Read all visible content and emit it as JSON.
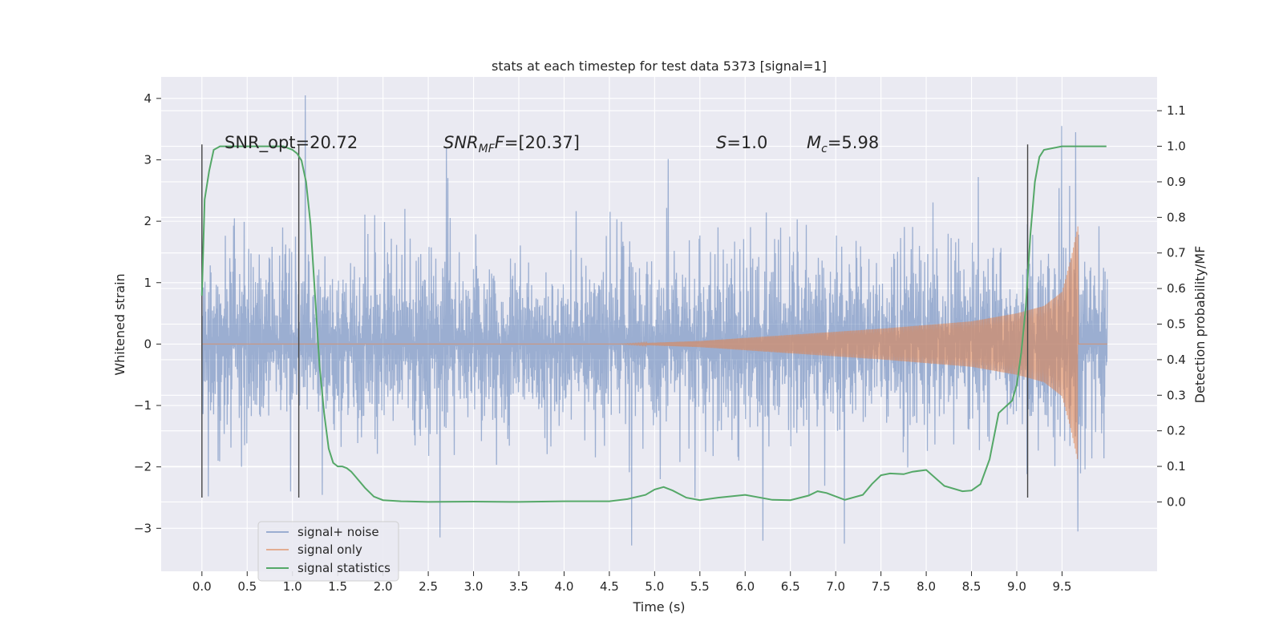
{
  "chart_data": {
    "type": "line",
    "title": "stats at each timestep for test data 5373 [signal=1]",
    "xlabel": "Time (s)",
    "ylabel_left": "Whitened strain",
    "ylabel_right": "Detection probability/MF",
    "xlim": [
      -0.45,
      10.55
    ],
    "ylim_left": [
      -3.7,
      4.35
    ],
    "ylim_right": [
      -0.195,
      1.195
    ],
    "x_ticks": [
      "0.0",
      "0.5",
      "1.0",
      "1.5",
      "2.0",
      "2.5",
      "3.0",
      "3.5",
      "4.0",
      "4.5",
      "5.0",
      "5.5",
      "6.0",
      "6.5",
      "7.0",
      "7.5",
      "8.0",
      "8.5",
      "9.0",
      "9.5"
    ],
    "y_left_ticks": [
      "4",
      "3",
      "2",
      "1",
      "0",
      "−1",
      "−2",
      "−3"
    ],
    "y_right_ticks": [
      "1.1",
      "1.0",
      "0.9",
      "0.8",
      "0.7",
      "0.6",
      "0.5",
      "0.4",
      "0.3",
      "0.2",
      "0.1",
      "0.0"
    ],
    "grid": true,
    "annotations": {
      "snr_opt": "SNR_opt=20.72",
      "snr_mf_prefix": "SNR",
      "snr_mf_sub": "MF",
      "snr_mf_suffix": "=[20.37]",
      "s_prefix": "S",
      "s_suffix": "=1.0",
      "mc_prefix": "M",
      "mc_sub": "c",
      "mc_suffix": "=5.98"
    },
    "vertical_markers_x": [
      0.0,
      1.07,
      9.12
    ],
    "legend": {
      "placement": "lower-left",
      "entries": [
        "signal+ noise",
        "signal only",
        "signal statistics"
      ]
    },
    "series": [
      {
        "name": "signal+ noise",
        "axis": "left",
        "description_values": {
          "x_range": [
            0.0,
            10.0
          ],
          "typical_envelope": [
            -1.8,
            2.0
          ],
          "peaks": [
            {
              "x": 1.14,
              "y": 4.05
            },
            {
              "x": 2.7,
              "y": 3.2
            },
            {
              "x": 9.5,
              "y": 3.55
            },
            {
              "x": 9.65,
              "y": 3.45
            },
            {
              "x": 4.75,
              "y": -3.28
            },
            {
              "x": 2.63,
              "y": -3.15
            },
            {
              "x": 6.2,
              "y": -3.2
            },
            {
              "x": 7.1,
              "y": -3.25
            },
            {
              "x": 9.68,
              "y": -3.05
            },
            {
              "x": 0.07,
              "y": -2.48
            },
            {
              "x": 0.98,
              "y": -2.4
            }
          ]
        }
      },
      {
        "name": "signal only",
        "axis": "left",
        "description_values": {
          "chirp_start_x": 4.6,
          "chirp_end_x": 9.68,
          "amplitude_points": [
            [
              4.6,
              0.0
            ],
            [
              5.5,
              0.05
            ],
            [
              6.5,
              0.15
            ],
            [
              7.5,
              0.25
            ],
            [
              8.5,
              0.37
            ],
            [
              9.0,
              0.5
            ],
            [
              9.3,
              0.62
            ],
            [
              9.5,
              0.85
            ],
            [
              9.6,
              1.4
            ],
            [
              9.68,
              1.95
            ]
          ]
        }
      },
      {
        "name": "signal statistics",
        "axis": "right",
        "x": [
          0.0,
          0.03,
          0.08,
          0.13,
          0.2,
          0.3,
          0.5,
          0.7,
          0.9,
          1.0,
          1.05,
          1.1,
          1.15,
          1.2,
          1.25,
          1.3,
          1.35,
          1.4,
          1.45,
          1.5,
          1.55,
          1.6,
          1.65,
          1.7,
          1.8,
          1.9,
          2.0,
          2.2,
          2.5,
          3.0,
          3.5,
          4.0,
          4.5,
          4.7,
          4.9,
          5.0,
          5.1,
          5.2,
          5.35,
          5.5,
          5.7,
          6.0,
          6.3,
          6.5,
          6.7,
          6.8,
          6.9,
          7.1,
          7.3,
          7.4,
          7.5,
          7.6,
          7.75,
          7.85,
          8.0,
          8.2,
          8.4,
          8.5,
          8.6,
          8.7,
          8.8,
          8.95,
          9.0,
          9.05,
          9.1,
          9.15,
          9.2,
          9.25,
          9.3,
          9.5,
          9.7,
          9.99
        ],
        "values": [
          0.58,
          0.85,
          0.93,
          0.99,
          1.0,
          1.0,
          1.0,
          1.0,
          1.0,
          0.99,
          0.98,
          0.96,
          0.9,
          0.78,
          0.58,
          0.38,
          0.25,
          0.15,
          0.11,
          0.1,
          0.1,
          0.095,
          0.085,
          0.07,
          0.04,
          0.015,
          0.005,
          0.002,
          0.0,
          0.001,
          0.0,
          0.002,
          0.002,
          0.008,
          0.02,
          0.035,
          0.042,
          0.032,
          0.012,
          0.005,
          0.012,
          0.02,
          0.006,
          0.005,
          0.018,
          0.03,
          0.025,
          0.006,
          0.02,
          0.05,
          0.075,
          0.08,
          0.078,
          0.085,
          0.09,
          0.045,
          0.03,
          0.032,
          0.05,
          0.12,
          0.25,
          0.285,
          0.33,
          0.42,
          0.55,
          0.75,
          0.9,
          0.97,
          0.99,
          1.0,
          1.0,
          1.0
        ]
      }
    ]
  },
  "colors": {
    "background": "#eaeaf2",
    "grid": "#ffffff",
    "noise": "#4c72b0",
    "signal": "#dd8452",
    "stats": "#55a868",
    "marker": "#444444"
  }
}
